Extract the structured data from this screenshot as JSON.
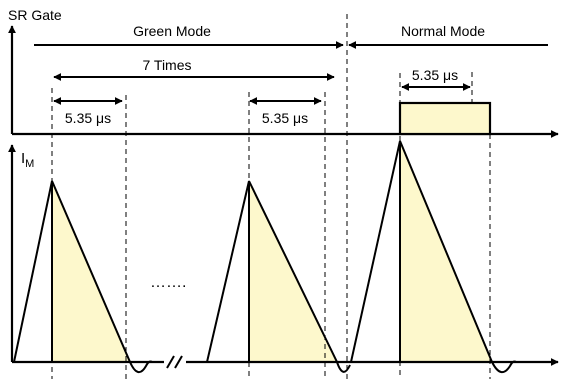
{
  "axes": {
    "top_label": "SR Gate",
    "bottom_label_main": "I",
    "bottom_label_sub": "M"
  },
  "modes": {
    "green": "Green Mode",
    "normal": "Normal Mode"
  },
  "annotations": {
    "times": "7 Times",
    "pulse_1": "5.35 μs",
    "pulse_2": "5.35 μs",
    "pulse_3": "5.35 μs",
    "ellipsis": "……."
  },
  "colors": {
    "fill": "#fdf8cc",
    "stroke": "#000000"
  }
}
